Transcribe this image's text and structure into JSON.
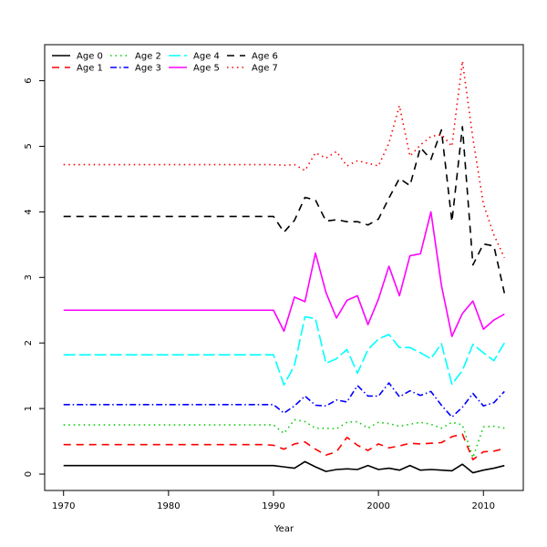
{
  "chart_data": {
    "type": "line",
    "title": "",
    "xlabel": "Year",
    "ylabel": "",
    "xlim": [
      1968.2,
      2013.8
    ],
    "ylim": [
      -0.25,
      6.55
    ],
    "x_ticks": [
      1970,
      1980,
      1990,
      2000,
      2010
    ],
    "y_ticks": [
      0,
      1,
      2,
      3,
      4,
      5,
      6
    ],
    "grid": false,
    "legend_position": "top-left",
    "x": [
      1970,
      1971,
      1972,
      1973,
      1974,
      1975,
      1976,
      1977,
      1978,
      1979,
      1980,
      1981,
      1982,
      1983,
      1984,
      1985,
      1986,
      1987,
      1988,
      1989,
      1990,
      1991,
      1992,
      1993,
      1994,
      1995,
      1996,
      1997,
      1998,
      1999,
      2000,
      2001,
      2002,
      2003,
      2004,
      2005,
      2006,
      2007,
      2008,
      2009,
      2010,
      2011,
      2012
    ],
    "series": [
      {
        "name": "Age 0",
        "color": "#000000",
        "dash": "none",
        "values": [
          0.13,
          0.13,
          0.13,
          0.13,
          0.13,
          0.13,
          0.13,
          0.13,
          0.13,
          0.13,
          0.13,
          0.13,
          0.13,
          0.13,
          0.13,
          0.13,
          0.13,
          0.13,
          0.13,
          0.13,
          0.13,
          0.11,
          0.09,
          0.19,
          0.11,
          0.04,
          0.07,
          0.08,
          0.07,
          0.13,
          0.07,
          0.09,
          0.06,
          0.13,
          0.06,
          0.07,
          0.06,
          0.05,
          0.15,
          0.02,
          0.06,
          0.09,
          0.13
        ]
      },
      {
        "name": "Age 1",
        "color": "#ff0000",
        "dash": "8,6",
        "values": [
          0.45,
          0.45,
          0.45,
          0.45,
          0.45,
          0.45,
          0.45,
          0.45,
          0.45,
          0.45,
          0.45,
          0.45,
          0.45,
          0.45,
          0.45,
          0.45,
          0.45,
          0.45,
          0.45,
          0.45,
          0.44,
          0.38,
          0.46,
          0.49,
          0.38,
          0.29,
          0.34,
          0.56,
          0.44,
          0.36,
          0.46,
          0.4,
          0.43,
          0.47,
          0.46,
          0.47,
          0.48,
          0.57,
          0.61,
          0.22,
          0.34,
          0.35,
          0.39
        ]
      },
      {
        "name": "Age 2",
        "color": "#00cd00",
        "dash": "1.5,4",
        "values": [
          0.75,
          0.75,
          0.75,
          0.75,
          0.75,
          0.75,
          0.75,
          0.75,
          0.75,
          0.75,
          0.75,
          0.75,
          0.75,
          0.75,
          0.75,
          0.75,
          0.75,
          0.75,
          0.75,
          0.75,
          0.75,
          0.62,
          0.83,
          0.8,
          0.7,
          0.7,
          0.69,
          0.79,
          0.8,
          0.7,
          0.79,
          0.77,
          0.73,
          0.76,
          0.79,
          0.76,
          0.7,
          0.79,
          0.75,
          0.25,
          0.72,
          0.73,
          0.7
        ]
      },
      {
        "name": "Age 3",
        "color": "#0000ff",
        "dash": "7,3,1.5,3",
        "values": [
          1.06,
          1.06,
          1.06,
          1.06,
          1.06,
          1.06,
          1.06,
          1.06,
          1.06,
          1.06,
          1.06,
          1.06,
          1.06,
          1.06,
          1.06,
          1.06,
          1.06,
          1.06,
          1.06,
          1.06,
          1.06,
          0.93,
          1.04,
          1.19,
          1.05,
          1.04,
          1.13,
          1.1,
          1.35,
          1.19,
          1.19,
          1.39,
          1.18,
          1.27,
          1.2,
          1.26,
          1.05,
          0.87,
          1.02,
          1.23,
          1.04,
          1.09,
          1.26
        ]
      },
      {
        "name": "Age 4",
        "color": "#00ffff",
        "dash": "13,4",
        "values": [
          1.82,
          1.82,
          1.82,
          1.82,
          1.82,
          1.82,
          1.82,
          1.82,
          1.82,
          1.82,
          1.82,
          1.82,
          1.82,
          1.82,
          1.82,
          1.82,
          1.82,
          1.82,
          1.82,
          1.82,
          1.82,
          1.36,
          1.66,
          2.4,
          2.37,
          1.69,
          1.76,
          1.9,
          1.54,
          1.9,
          2.06,
          2.13,
          1.93,
          1.93,
          1.85,
          1.76,
          1.99,
          1.37,
          1.58,
          1.98,
          1.85,
          1.73,
          2.0
        ]
      },
      {
        "name": "Age 5",
        "color": "#ff00ff",
        "dash": "none",
        "values": [
          2.5,
          2.5,
          2.5,
          2.5,
          2.5,
          2.5,
          2.5,
          2.5,
          2.5,
          2.5,
          2.5,
          2.5,
          2.5,
          2.5,
          2.5,
          2.5,
          2.5,
          2.5,
          2.5,
          2.5,
          2.5,
          2.18,
          2.7,
          2.63,
          3.37,
          2.77,
          2.38,
          2.65,
          2.72,
          2.28,
          2.67,
          3.17,
          2.72,
          3.33,
          3.36,
          4.0,
          2.88,
          2.1,
          2.45,
          2.64,
          2.21,
          2.35,
          2.44
        ]
      },
      {
        "name": "Age 6",
        "color": "#000000",
        "dash": "8,6",
        "values": [
          3.93,
          3.93,
          3.93,
          3.93,
          3.93,
          3.93,
          3.93,
          3.93,
          3.93,
          3.93,
          3.93,
          3.93,
          3.93,
          3.93,
          3.93,
          3.93,
          3.93,
          3.93,
          3.93,
          3.93,
          3.93,
          3.69,
          3.87,
          4.22,
          4.18,
          3.86,
          3.88,
          3.85,
          3.85,
          3.8,
          3.89,
          4.21,
          4.51,
          4.4,
          4.98,
          4.8,
          5.25,
          3.85,
          5.3,
          3.19,
          3.51,
          3.48,
          2.76
        ]
      },
      {
        "name": "Age 7",
        "color": "#ff0000",
        "dash": "1.5,4",
        "values": [
          4.72,
          4.72,
          4.72,
          4.72,
          4.72,
          4.72,
          4.72,
          4.72,
          4.72,
          4.72,
          4.72,
          4.72,
          4.72,
          4.72,
          4.72,
          4.72,
          4.72,
          4.72,
          4.72,
          4.72,
          4.72,
          4.71,
          4.72,
          4.63,
          4.9,
          4.82,
          4.92,
          4.7,
          4.78,
          4.74,
          4.7,
          5.05,
          5.62,
          4.85,
          5.02,
          5.15,
          5.18,
          5.0,
          6.3,
          5.12,
          4.12,
          3.65,
          3.3
        ]
      }
    ]
  }
}
